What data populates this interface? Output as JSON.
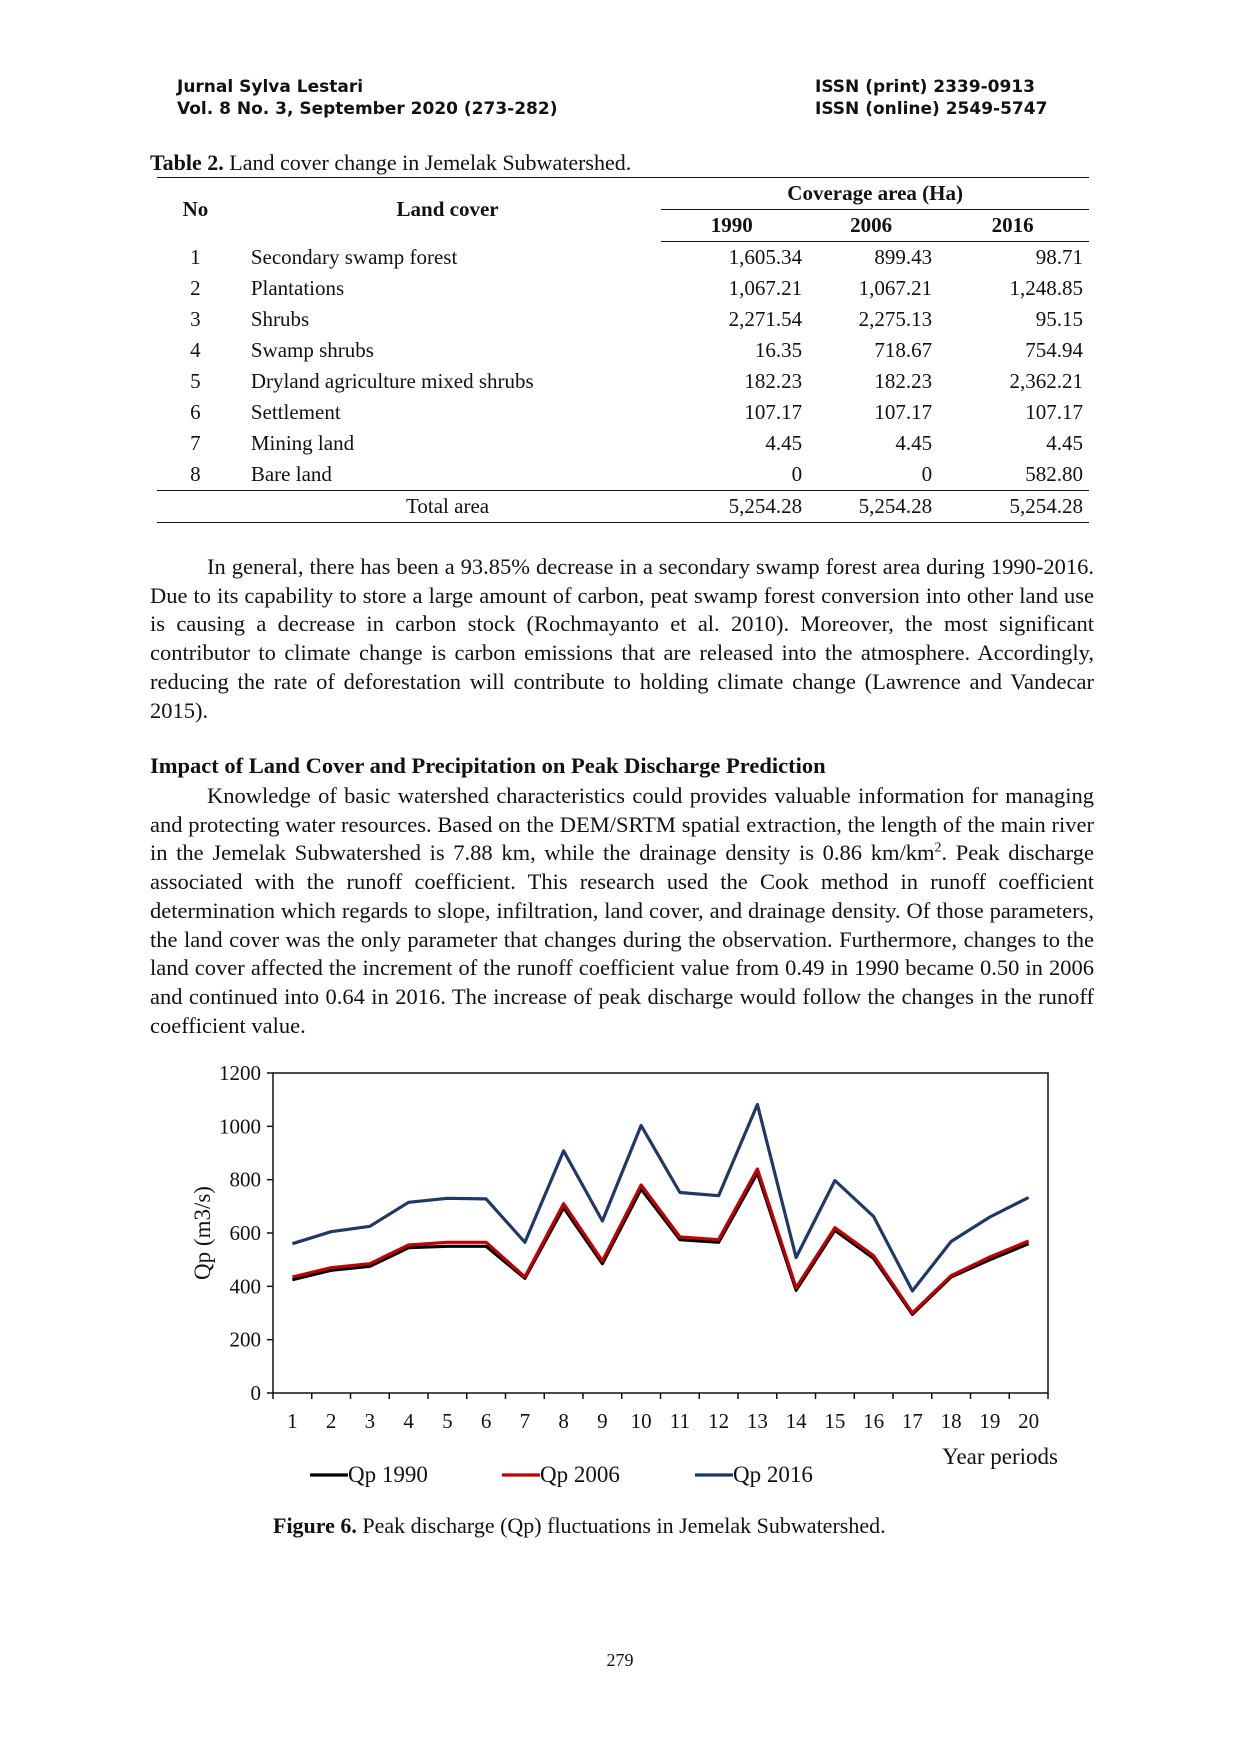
{
  "header": {
    "journal": "Jurnal Sylva Lestari",
    "volume": "Vol. 8 No. 3, September 2020 (273-282)",
    "issn_print": "ISSN (print) 2339-0913",
    "issn_online": "ISSN (online) 2549-5747"
  },
  "table": {
    "caption_label": "Table 2.",
    "caption_text": " Land cover change in Jemelak Subwatershed.",
    "col_no": "No",
    "col_land_cover": "Land cover",
    "col_group": "Coverage area (Ha)",
    "years": [
      "1990",
      "2006",
      "2016"
    ],
    "rows": [
      {
        "no": "1",
        "name": "Secondary swamp forest",
        "v1990": "1,605.34",
        "v2006": "899.43",
        "v2016": "98.71"
      },
      {
        "no": "2",
        "name": "Plantations",
        "v1990": "1,067.21",
        "v2006": "1,067.21",
        "v2016": "1,248.85"
      },
      {
        "no": "3",
        "name": "Shrubs",
        "v1990": "2,271.54",
        "v2006": "2,275.13",
        "v2016": "95.15"
      },
      {
        "no": "4",
        "name": "Swamp shrubs",
        "v1990": "16.35",
        "v2006": "718.67",
        "v2016": "754.94"
      },
      {
        "no": "5",
        "name": "Dryland agriculture mixed shrubs",
        "v1990": "182.23",
        "v2006": "182.23",
        "v2016": "2,362.21"
      },
      {
        "no": "6",
        "name": "Settlement",
        "v1990": "107.17",
        "v2006": "107.17",
        "v2016": "107.17"
      },
      {
        "no": "7",
        "name": "Mining land",
        "v1990": "4.45",
        "v2006": "4.45",
        "v2016": "4.45"
      },
      {
        "no": "8",
        "name": "Bare land",
        "v1990": "0",
        "v2006": "0",
        "v2016": "582.80"
      }
    ],
    "total": {
      "label": "Total area",
      "v1990": "5,254.28",
      "v2006": "5,254.28",
      "v2016": "5,254.28"
    }
  },
  "paragraph1": "In general, there has been a 93.85% decrease in a secondary swamp forest area during 1990-2016. Due to its capability to store a large amount of carbon, peat swamp forest conversion into other land use is causing a decrease in carbon stock (Rochmayanto et al. 2010). Moreover, the most significant contributor to climate change is carbon emissions that are released into the atmosphere. Accordingly, reducing the rate of deforestation will contribute to holding climate change (Lawrence and Vandecar 2015).",
  "section_heading": "Impact of Land Cover and Precipitation on Peak Discharge Prediction",
  "paragraph2": {
    "before_sup": "Knowledge of basic watershed characteristics could provides valuable information for managing and protecting water resources. Based on the DEM/SRTM spatial extraction, the length of the main river in the Jemelak Subwatershed is 7.88 km, while the drainage density is 0.86 km/km",
    "sup": "2",
    "after_sup": ". Peak discharge associated with the runoff coefficient. This research used the Cook method in runoff coefficient determination which regards to slope, infiltration, land cover, and drainage density. Of those parameters, the land cover was the only parameter that changes during the observation. Furthermore, changes to the land cover affected the increment of the runoff coefficient value from 0.49 in 1990 became 0.50 in 2006 and continued into 0.64 in 2016. The increase of peak discharge would follow the changes in the runoff coefficient value."
  },
  "chart_data": {
    "type": "line",
    "ylabel": "Qp (m3/s)",
    "xlabel": "Year periods",
    "ylim": [
      0,
      1200
    ],
    "yticks": [
      0,
      200,
      400,
      600,
      800,
      1000,
      1200
    ],
    "x": [
      1,
      2,
      3,
      4,
      5,
      6,
      7,
      8,
      9,
      10,
      11,
      12,
      13,
      14,
      15,
      16,
      17,
      18,
      19,
      20
    ],
    "grid": false,
    "legend_position": "bottom",
    "series": [
      {
        "name": "Qp 1990",
        "color": "#000000",
        "values": [
          425,
          460,
          475,
          545,
          550,
          550,
          430,
          695,
          485,
          765,
          575,
          565,
          825,
          385,
          610,
          505,
          295,
          435,
          500,
          560
        ]
      },
      {
        "name": "Qp 2006",
        "color": "#c00000",
        "values": [
          435,
          470,
          485,
          555,
          565,
          565,
          435,
          710,
          495,
          780,
          585,
          575,
          840,
          395,
          620,
          515,
          300,
          440,
          510,
          570
        ]
      },
      {
        "name": "Qp 2016",
        "color": "#1f3864",
        "values": [
          560,
          605,
          625,
          715,
          730,
          728,
          565,
          908,
          645,
          1003,
          752,
          740,
          1082,
          508,
          797,
          662,
          383,
          568,
          660,
          733
        ]
      }
    ]
  },
  "figure_caption": {
    "label": "Figure 6.",
    "text": " Peak discharge (Qp) fluctuations in Jemelak Subwatershed."
  },
  "page_number": "279"
}
